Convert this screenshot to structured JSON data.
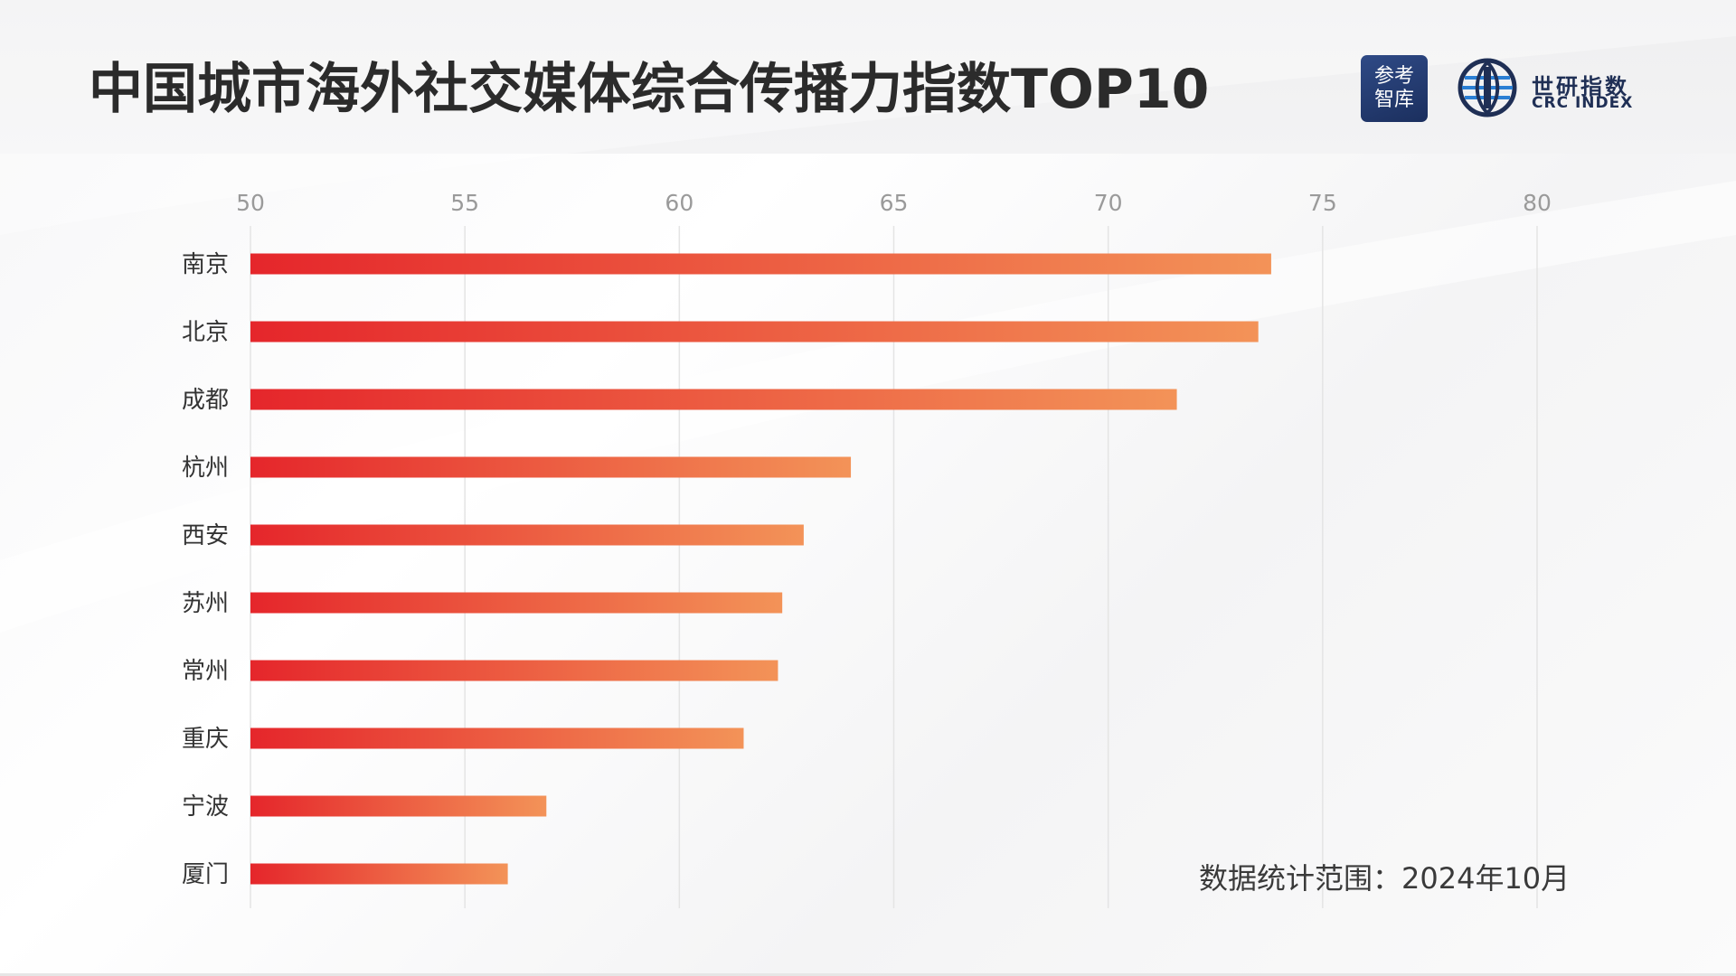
{
  "title": "中国城市海外社交媒体综合传播力指数TOP10",
  "logos": {
    "ckzk_line1": "参考",
    "ckzk_line2": "智库",
    "crc_cn": "世研指数",
    "crc_en": "CRC INDEX"
  },
  "footnote": "数据统计范围：2024年10月",
  "colors": {
    "bar_start": "#e5262b",
    "bar_end": "#f39358",
    "grid": "#e4e4e4",
    "title": "#2b2b2b",
    "logo_navy": "#1f2f55"
  },
  "chart_data": {
    "type": "bar",
    "orientation": "horizontal",
    "title": "中国城市海外社交媒体综合传播力指数TOP10",
    "xlabel": "",
    "ylabel": "",
    "xlim": [
      50,
      80
    ],
    "xticks": [
      50,
      55,
      60,
      65,
      70,
      75,
      80
    ],
    "x_axis_position": "top",
    "grid": true,
    "legend": "none",
    "categories": [
      "南京",
      "北京",
      "成都",
      "杭州",
      "西安",
      "苏州",
      "常州",
      "重庆",
      "宁波",
      "厦门"
    ],
    "values": [
      73.8,
      73.5,
      71.6,
      64.0,
      62.9,
      62.4,
      62.3,
      61.5,
      56.9,
      56.0
    ]
  }
}
